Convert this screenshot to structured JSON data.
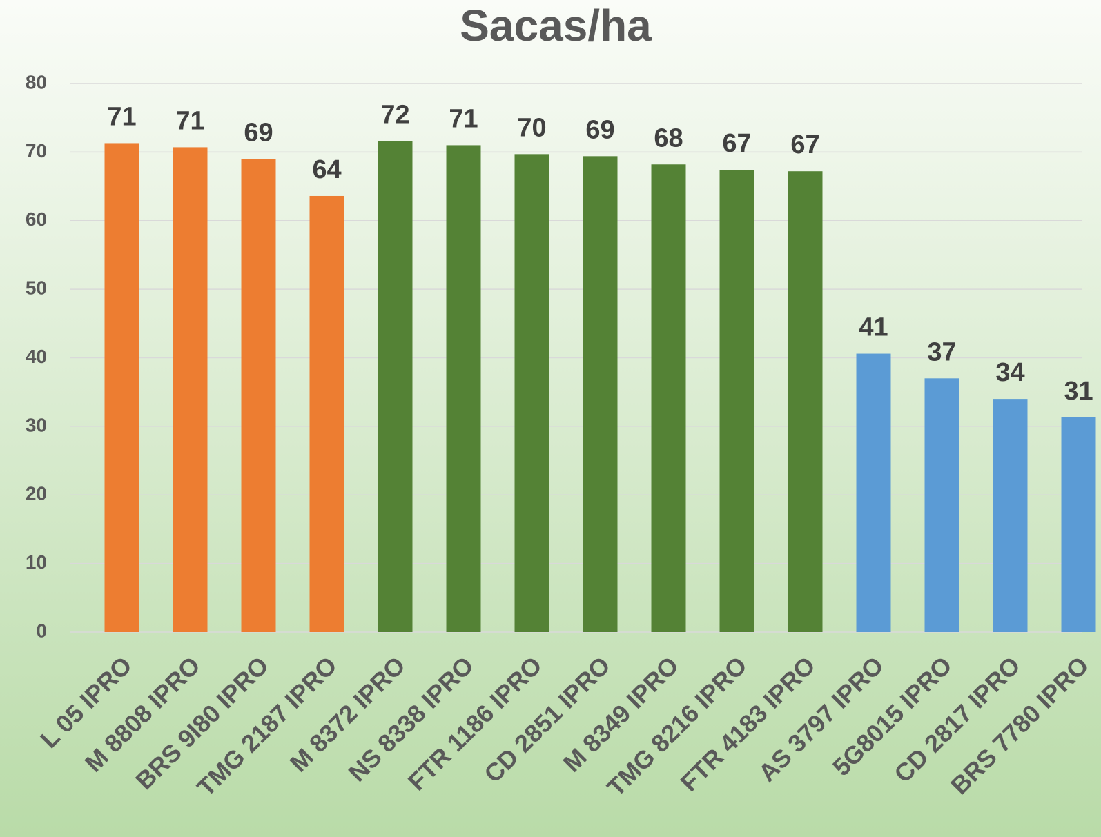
{
  "chart_data": {
    "type": "bar",
    "title": "Sacas/ha",
    "categories": [
      "L 05 IPRO",
      "M 8808 IPRO",
      "BRS 9I80 IPRO",
      "TMG 2187 IPRO",
      "M 8372 IPRO",
      "NS 8338 IPRO",
      "FTR 1186 IPRO",
      "CD 2851 IPRO",
      "M 8349 IPRO",
      "TMG 8216 IPRO",
      "FTR 4183 IPRO",
      "AS 3797 IPRO",
      "5G8015 IPRO",
      "CD 2817 IPRO",
      "BRS 7780 IPRO"
    ],
    "values": [
      71.3,
      70.7,
      69.0,
      63.6,
      71.6,
      71.0,
      69.7,
      69.4,
      68.2,
      67.4,
      67.2,
      40.6,
      37.0,
      34.0,
      31.3
    ],
    "value_labels": [
      "71",
      "71",
      "69",
      "64",
      "72",
      "71",
      "70",
      "69",
      "68",
      "67",
      "67",
      "41",
      "37",
      "34",
      "31"
    ],
    "colors": [
      "#ed7d31",
      "#ed7d31",
      "#ed7d31",
      "#ed7d31",
      "#548235",
      "#548235",
      "#548235",
      "#548235",
      "#548235",
      "#548235",
      "#548235",
      "#5b9bd5",
      "#5b9bd5",
      "#5b9bd5",
      "#5b9bd5"
    ],
    "ylim": [
      0,
      80
    ],
    "yticks": [
      0,
      10,
      20,
      30,
      40,
      50,
      60,
      70,
      80
    ],
    "grid": true
  }
}
